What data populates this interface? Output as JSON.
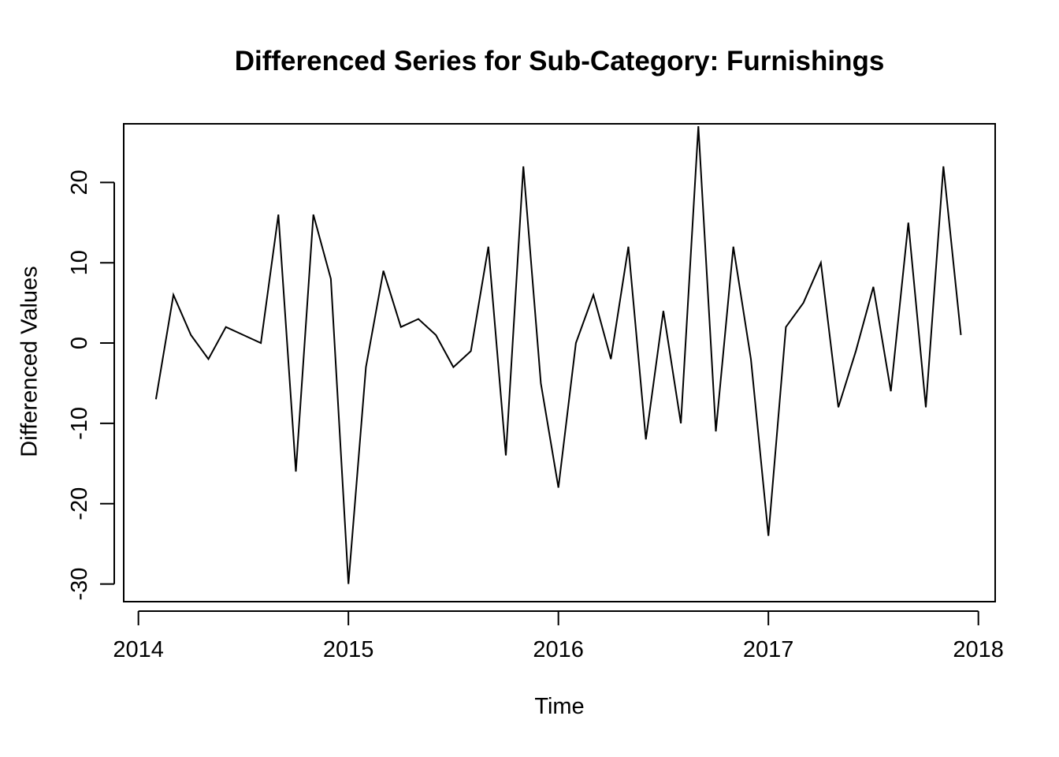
{
  "chart_data": {
    "type": "line",
    "title": "Differenced Series for Sub-Category: Furnishings",
    "xlabel": "Time",
    "ylabel": "Differenced Values",
    "xlim": [
      2013.93,
      2018.08
    ],
    "ylim": [
      -32.2,
      27.3
    ],
    "x_ticks": [
      2014,
      2015,
      2016,
      2017,
      2018
    ],
    "x_tick_labels": [
      "2014",
      "2015",
      "2016",
      "2017",
      "2018"
    ],
    "y_ticks": [
      -30,
      -20,
      -10,
      0,
      10,
      20
    ],
    "y_tick_labels": [
      "-30",
      "-20",
      "-10",
      "0",
      "10",
      "20"
    ],
    "grid": false,
    "line_color": "#000000",
    "series": [
      {
        "start": 2014.0833,
        "frequency": 12,
        "values": [
          -7,
          6,
          1,
          -2,
          2,
          1,
          0,
          16,
          -16,
          16,
          8,
          -30,
          -3,
          9,
          2,
          3,
          1,
          -3,
          -1,
          12,
          -14,
          22,
          -5,
          -18,
          0,
          6,
          -2,
          12,
          -12,
          4,
          -10,
          27,
          -11,
          12,
          -2,
          -24,
          2,
          5,
          10,
          -8,
          -1,
          7,
          -6,
          15,
          -8,
          22,
          1
        ]
      }
    ]
  }
}
